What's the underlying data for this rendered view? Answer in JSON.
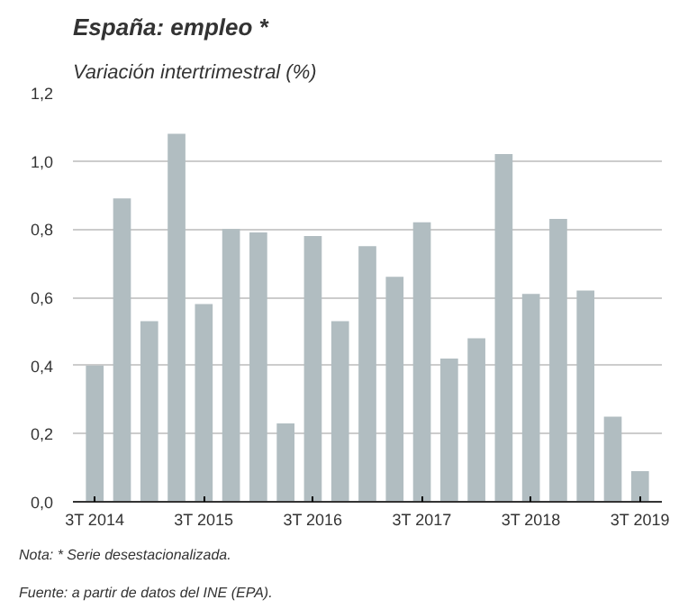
{
  "chart_data": {
    "type": "bar",
    "title": "España: empleo *",
    "subtitle": "Variación intertrimestral (%)",
    "categories": [
      "3T 2014",
      null,
      null,
      null,
      "3T 2015",
      null,
      null,
      null,
      "3T 2016",
      null,
      null,
      null,
      "3T 2017",
      null,
      null,
      null,
      "3T 2018",
      null,
      null,
      null,
      "3T 2019"
    ],
    "values": [
      0.4,
      0.89,
      0.53,
      1.08,
      0.58,
      0.8,
      0.79,
      0.23,
      0.78,
      0.53,
      0.75,
      0.66,
      0.82,
      0.42,
      0.48,
      1.02,
      0.61,
      0.83,
      0.62,
      0.25,
      0.09
    ],
    "color": "#b1bdc1",
    "ylim": [
      0,
      1.2
    ],
    "yticks": [
      {
        "value": 0,
        "label": "0,0"
      },
      {
        "value": 0.2,
        "label": "0,2"
      },
      {
        "value": 0.4,
        "label": "0,4"
      },
      {
        "value": 0.6,
        "label": "0,6"
      },
      {
        "value": 0.8,
        "label": "0,8"
      },
      {
        "value": 1.0,
        "label": "1,0"
      },
      {
        "value": 1.2,
        "label": "1,2"
      }
    ],
    "grid": "y",
    "annotations": [
      "Nota: * Serie desestacionalizada.",
      "Fuente: a partir de datos del INE (EPA)."
    ]
  }
}
